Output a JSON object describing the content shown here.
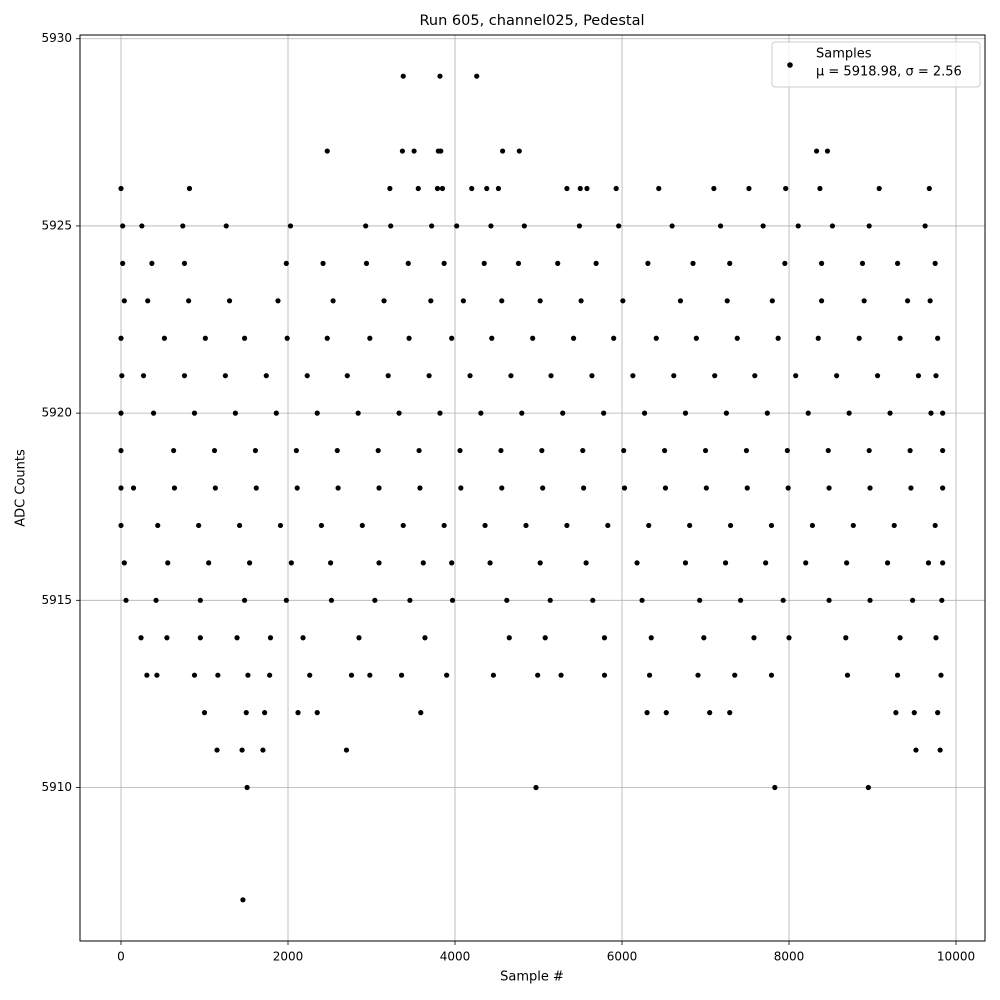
{
  "chart_data": {
    "type": "scatter",
    "title": "Run 605, channel025, Pedestal",
    "x_label": "Sample #",
    "y_label": "ADC Counts",
    "legend": {
      "name": "Samples",
      "stats": "μ = 5918.98, σ = 2.56",
      "position": "upper right"
    },
    "color": "#000000",
    "grid": true,
    "xlim": [
      -491,
      10347
    ],
    "ylim": [
      5905.9,
      5930.1
    ],
    "xticks": [
      0,
      2000,
      4000,
      6000,
      8000,
      10000
    ],
    "yticks": [
      5910,
      5915,
      5920,
      5925,
      5930
    ],
    "x": [
      1460,
      1510,
      4970,
      7830,
      8950,
      3380,
      3820,
      4260,
      2470,
      3370,
      3510,
      3800,
      3830,
      4570,
      4770,
      8330,
      8460,
      0,
      820,
      3220,
      3560,
      3790,
      3850,
      4200,
      4380,
      4520,
      5340,
      5500,
      5580,
      5930,
      6440,
      7100,
      7520,
      7960,
      8370,
      9080,
      9680,
      1150,
      1450,
      1700,
      2700,
      9520,
      9810,
      0,
      520,
      1010,
      1480,
      1990,
      2470,
      2980,
      3450,
      3960,
      4440,
      4930,
      5420,
      5900,
      6410,
      6890,
      7380,
      7870,
      8350,
      8840,
      9330,
      9780,
      10,
      270,
      760,
      1250,
      1740,
      2230,
      2710,
      3200,
      3690,
      4180,
      4670,
      5150,
      5640,
      6130,
      6620,
      7110,
      7590,
      8080,
      8570,
      9060,
      9550,
      9760,
      0,
      390,
      880,
      1370,
      1860,
      2350,
      2840,
      3330,
      3820,
      4310,
      4800,
      5290,
      5780,
      6270,
      6760,
      7250,
      7740,
      8230,
      8720,
      9210,
      9700,
      9840,
      0,
      630,
      1120,
      1610,
      2100,
      2590,
      3080,
      3570,
      4060,
      4550,
      5040,
      5530,
      6020,
      6510,
      7000,
      7490,
      7980,
      8470,
      8960,
      9450,
      9840,
      0,
      150,
      640,
      1130,
      1620,
      2110,
      2600,
      3090,
      3580,
      4070,
      4560,
      5050,
      5540,
      6030,
      6520,
      7010,
      7500,
      7990,
      8480,
      8970,
      9460,
      9840,
      0,
      440,
      930,
      1420,
      1910,
      2400,
      2890,
      3380,
      3870,
      4360,
      4850,
      5340,
      5830,
      6320,
      6810,
      7300,
      7790,
      8280,
      8770,
      9260,
      9750,
      40,
      560,
      1050,
      1540,
      2040,
      2510,
      3090,
      3620,
      3960,
      4420,
      5020,
      5570,
      6180,
      6760,
      7240,
      7720,
      8200,
      8690,
      9180,
      9670,
      9840,
      40,
      320,
      810,
      1300,
      1880,
      2540,
      3150,
      3710,
      4100,
      4560,
      5020,
      5510,
      6010,
      6700,
      7260,
      7800,
      8390,
      8900,
      9420,
      9690,
      60,
      420,
      950,
      1480,
      1980,
      2520,
      3040,
      3460,
      3970,
      4620,
      5140,
      5650,
      6240,
      6930,
      7420,
      7930,
      8480,
      8970,
      9480,
      9830,
      240,
      550,
      950,
      1390,
      1790,
      2180,
      2850,
      3640,
      4650,
      5080,
      5790,
      6350,
      6980,
      7580,
      8000,
      8680,
      9330,
      9760,
      20,
      370,
      760,
      1980,
      2420,
      2940,
      3440,
      3870,
      4350,
      4760,
      5230,
      5690,
      6310,
      6850,
      7290,
      7950,
      8390,
      8880,
      9300,
      9750,
      310,
      430,
      880,
      1160,
      1520,
      1780,
      2260,
      2760,
      2980,
      3360,
      3900,
      4460,
      4990,
      5270,
      5790,
      6330,
      6910,
      7350,
      7790,
      8700,
      9300,
      9820,
      20,
      250,
      740,
      1260,
      2030,
      2930,
      3230,
      3720,
      4020,
      4430,
      4830,
      5490,
      5960,
      6600,
      7180,
      7690,
      8110,
      8520,
      8960,
      9630,
      1000,
      1500,
      1720,
      2120,
      2350,
      3590,
      6300,
      6530,
      7050,
      7290,
      9280,
      9500,
      9780
    ],
    "values": [
      5907,
      5910,
      5910,
      5910,
      5910,
      5929,
      5929,
      5929,
      5927,
      5927,
      5927,
      5927,
      5927,
      5927,
      5927,
      5927,
      5927,
      5926,
      5926,
      5926,
      5926,
      5926,
      5926,
      5926,
      5926,
      5926,
      5926,
      5926,
      5926,
      5926,
      5926,
      5926,
      5926,
      5926,
      5926,
      5926,
      5926,
      5911,
      5911,
      5911,
      5911,
      5911,
      5911,
      5922,
      5922,
      5922,
      5922,
      5922,
      5922,
      5922,
      5922,
      5922,
      5922,
      5922,
      5922,
      5922,
      5922,
      5922,
      5922,
      5922,
      5922,
      5922,
      5922,
      5922,
      5921,
      5921,
      5921,
      5921,
      5921,
      5921,
      5921,
      5921,
      5921,
      5921,
      5921,
      5921,
      5921,
      5921,
      5921,
      5921,
      5921,
      5921,
      5921,
      5921,
      5921,
      5921,
      5920,
      5920,
      5920,
      5920,
      5920,
      5920,
      5920,
      5920,
      5920,
      5920,
      5920,
      5920,
      5920,
      5920,
      5920,
      5920,
      5920,
      5920,
      5920,
      5920,
      5920,
      5920,
      5919,
      5919,
      5919,
      5919,
      5919,
      5919,
      5919,
      5919,
      5919,
      5919,
      5919,
      5919,
      5919,
      5919,
      5919,
      5919,
      5919,
      5919,
      5919,
      5919,
      5919,
      5918,
      5918,
      5918,
      5918,
      5918,
      5918,
      5918,
      5918,
      5918,
      5918,
      5918,
      5918,
      5918,
      5918,
      5918,
      5918,
      5918,
      5918,
      5918,
      5918,
      5918,
      5918,
      5917,
      5917,
      5917,
      5917,
      5917,
      5917,
      5917,
      5917,
      5917,
      5917,
      5917,
      5917,
      5917,
      5917,
      5917,
      5917,
      5917,
      5917,
      5917,
      5917,
      5917,
      5916,
      5916,
      5916,
      5916,
      5916,
      5916,
      5916,
      5916,
      5916,
      5916,
      5916,
      5916,
      5916,
      5916,
      5916,
      5916,
      5916,
      5916,
      5916,
      5916,
      5916,
      5923,
      5923,
      5923,
      5923,
      5923,
      5923,
      5923,
      5923,
      5923,
      5923,
      5923,
      5923,
      5923,
      5923,
      5923,
      5923,
      5923,
      5923,
      5923,
      5923,
      5915,
      5915,
      5915,
      5915,
      5915,
      5915,
      5915,
      5915,
      5915,
      5915,
      5915,
      5915,
      5915,
      5915,
      5915,
      5915,
      5915,
      5915,
      5915,
      5915,
      5914,
      5914,
      5914,
      5914,
      5914,
      5914,
      5914,
      5914,
      5914,
      5914,
      5914,
      5914,
      5914,
      5914,
      5914,
      5914,
      5914,
      5914,
      5924,
      5924,
      5924,
      5924,
      5924,
      5924,
      5924,
      5924,
      5924,
      5924,
      5924,
      5924,
      5924,
      5924,
      5924,
      5924,
      5924,
      5924,
      5924,
      5924,
      5913,
      5913,
      5913,
      5913,
      5913,
      5913,
      5913,
      5913,
      5913,
      5913,
      5913,
      5913,
      5913,
      5913,
      5913,
      5913,
      5913,
      5913,
      5913,
      5913,
      5913,
      5913,
      5925,
      5925,
      5925,
      5925,
      5925,
      5925,
      5925,
      5925,
      5925,
      5925,
      5925,
      5925,
      5925,
      5925,
      5925,
      5925,
      5925,
      5925,
      5925,
      5925,
      5912,
      5912,
      5912,
      5912,
      5912,
      5912,
      5912,
      5912,
      5912,
      5912,
      5912,
      5912,
      5912
    ]
  }
}
